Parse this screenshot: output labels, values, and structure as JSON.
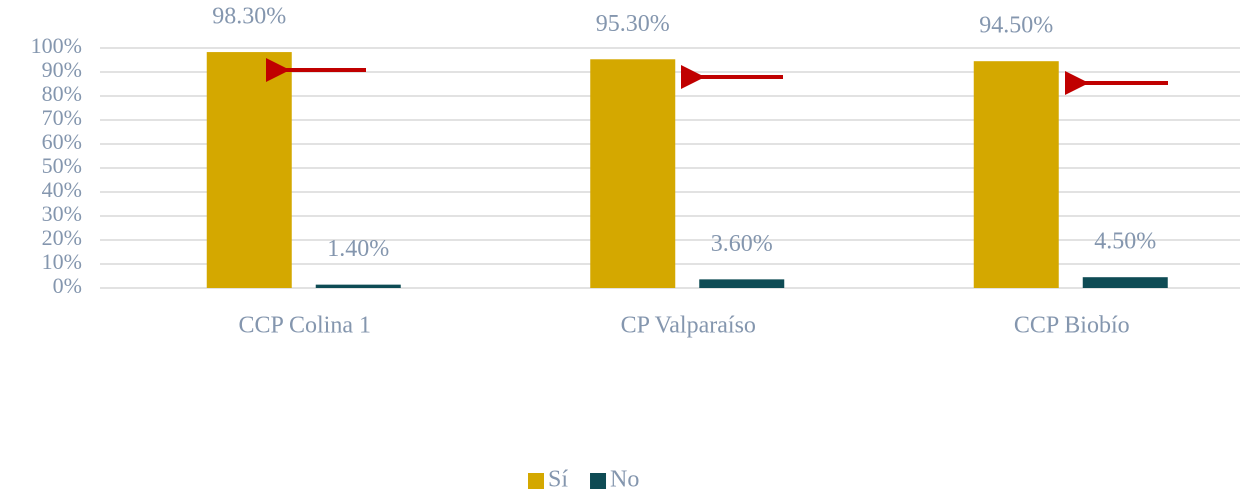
{
  "chart_data": {
    "type": "bar",
    "categories": [
      "CCP Colina 1",
      "CP Valparaíso",
      "CCP Biobío"
    ],
    "series": [
      {
        "name": "Sí",
        "color": "#d4a800",
        "values": [
          98.3,
          95.3,
          94.5
        ],
        "value_labels": [
          "98.30%",
          "95.30%",
          "94.50%"
        ]
      },
      {
        "name": "No",
        "color": "#0e4b54",
        "values": [
          1.4,
          3.6,
          4.5
        ],
        "value_labels": [
          "1.40%",
          "3.60%",
          "4.50%"
        ]
      }
    ],
    "ylim": [
      0,
      100
    ],
    "yticks": [
      {
        "value": 0,
        "label": "0%"
      },
      {
        "value": 10,
        "label": "10%"
      },
      {
        "value": 20,
        "label": "20%"
      },
      {
        "value": 30,
        "label": "30%"
      },
      {
        "value": 40,
        "label": "40%"
      },
      {
        "value": 50,
        "label": "50%"
      },
      {
        "value": 60,
        "label": "60%"
      },
      {
        "value": 70,
        "label": "70%"
      },
      {
        "value": 80,
        "label": "80%"
      },
      {
        "value": 90,
        "label": "90%"
      },
      {
        "value": 100,
        "label": "100%"
      }
    ],
    "grid": true,
    "legend": "bottom"
  }
}
